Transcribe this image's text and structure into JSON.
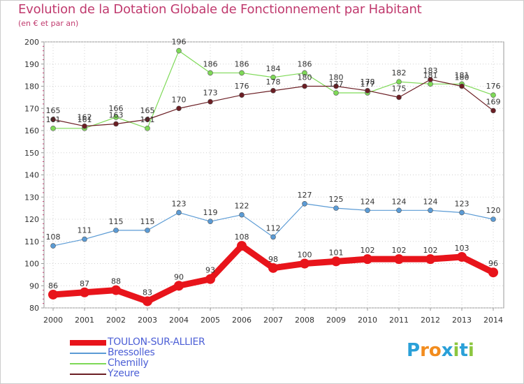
{
  "header": {
    "title": "Evolution de la Dotation Globale de Fonctionnement par Habitant",
    "subtitle": "(en € et par an)"
  },
  "brand": {
    "letters": [
      "P",
      "r",
      "o",
      "x",
      "i",
      "t",
      "i"
    ],
    "colors": [
      "#2aa0d8",
      "#f28c1e",
      "#f28c1e",
      "#2aa0d8",
      "#8cc63f",
      "#2aa0d8",
      "#8cc63f"
    ],
    "dot_colors": {
      "x": "#e63329",
      "i": "#e63329"
    }
  },
  "chart_data": {
    "type": "line",
    "title": "Evolution de la Dotation Globale de Fonctionnement par Habitant",
    "subtitle": "(en € et par an)",
    "xlabel": "",
    "ylabel": "",
    "x": [
      2000,
      2001,
      2002,
      2003,
      2004,
      2005,
      2006,
      2007,
      2008,
      2009,
      2010,
      2011,
      2012,
      2013,
      2014
    ],
    "ylim": [
      80,
      200
    ],
    "yticks": [
      80,
      90,
      100,
      110,
      120,
      130,
      140,
      150,
      160,
      170,
      180,
      190,
      200
    ],
    "grid": true,
    "legend_position": "bottom-left",
    "series": [
      {
        "name": "TOULON-SUR-ALLIER",
        "color": "#e8141b",
        "values": [
          86,
          87,
          88,
          83,
          90,
          93,
          108,
          98,
          100,
          101,
          102,
          102,
          102,
          103,
          96
        ]
      },
      {
        "name": "Bressolles",
        "color": "#5b9bd5",
        "values": [
          108,
          111,
          115,
          115,
          123,
          119,
          122,
          112,
          127,
          125,
          124,
          124,
          124,
          123,
          120
        ]
      },
      {
        "name": "Chemilly",
        "color": "#7ed957",
        "values": [
          161,
          161,
          166,
          161,
          196,
          186,
          186,
          184,
          186,
          177,
          177,
          182,
          181,
          181,
          176
        ]
      },
      {
        "name": "Yzeure",
        "color": "#6b1e24",
        "values": [
          165,
          162,
          163,
          165,
          170,
          173,
          176,
          178,
          180,
          180,
          178,
          175,
          183,
          180,
          169
        ]
      }
    ],
    "data_labels": [
      {
        "series": "TOULON-SUR-ALLIER",
        "labels": [
          "86",
          "87",
          "88",
          "83",
          "90",
          "93",
          "108",
          "98",
          "100",
          "101",
          "102",
          "102",
          "102",
          "103",
          "96"
        ]
      },
      {
        "series": "Bressolles",
        "labels": [
          "108",
          "111",
          "115",
          "115",
          "123",
          "119",
          "122",
          "112",
          "127",
          "125",
          "124",
          "124",
          "124",
          "123",
          "120"
        ]
      },
      {
        "series": "Chemilly",
        "labels": [
          "161",
          "161",
          "166",
          "161",
          "196",
          "186",
          "186",
          "184",
          "186",
          "177",
          "177",
          "182",
          "181",
          "181",
          "176"
        ]
      },
      {
        "series": "Yzeure",
        "labels": [
          "165",
          "162",
          "163",
          "165",
          "170",
          "173",
          "176",
          "178",
          "180",
          "180",
          "178",
          "175",
          "183",
          "180",
          "169"
        ]
      }
    ]
  }
}
